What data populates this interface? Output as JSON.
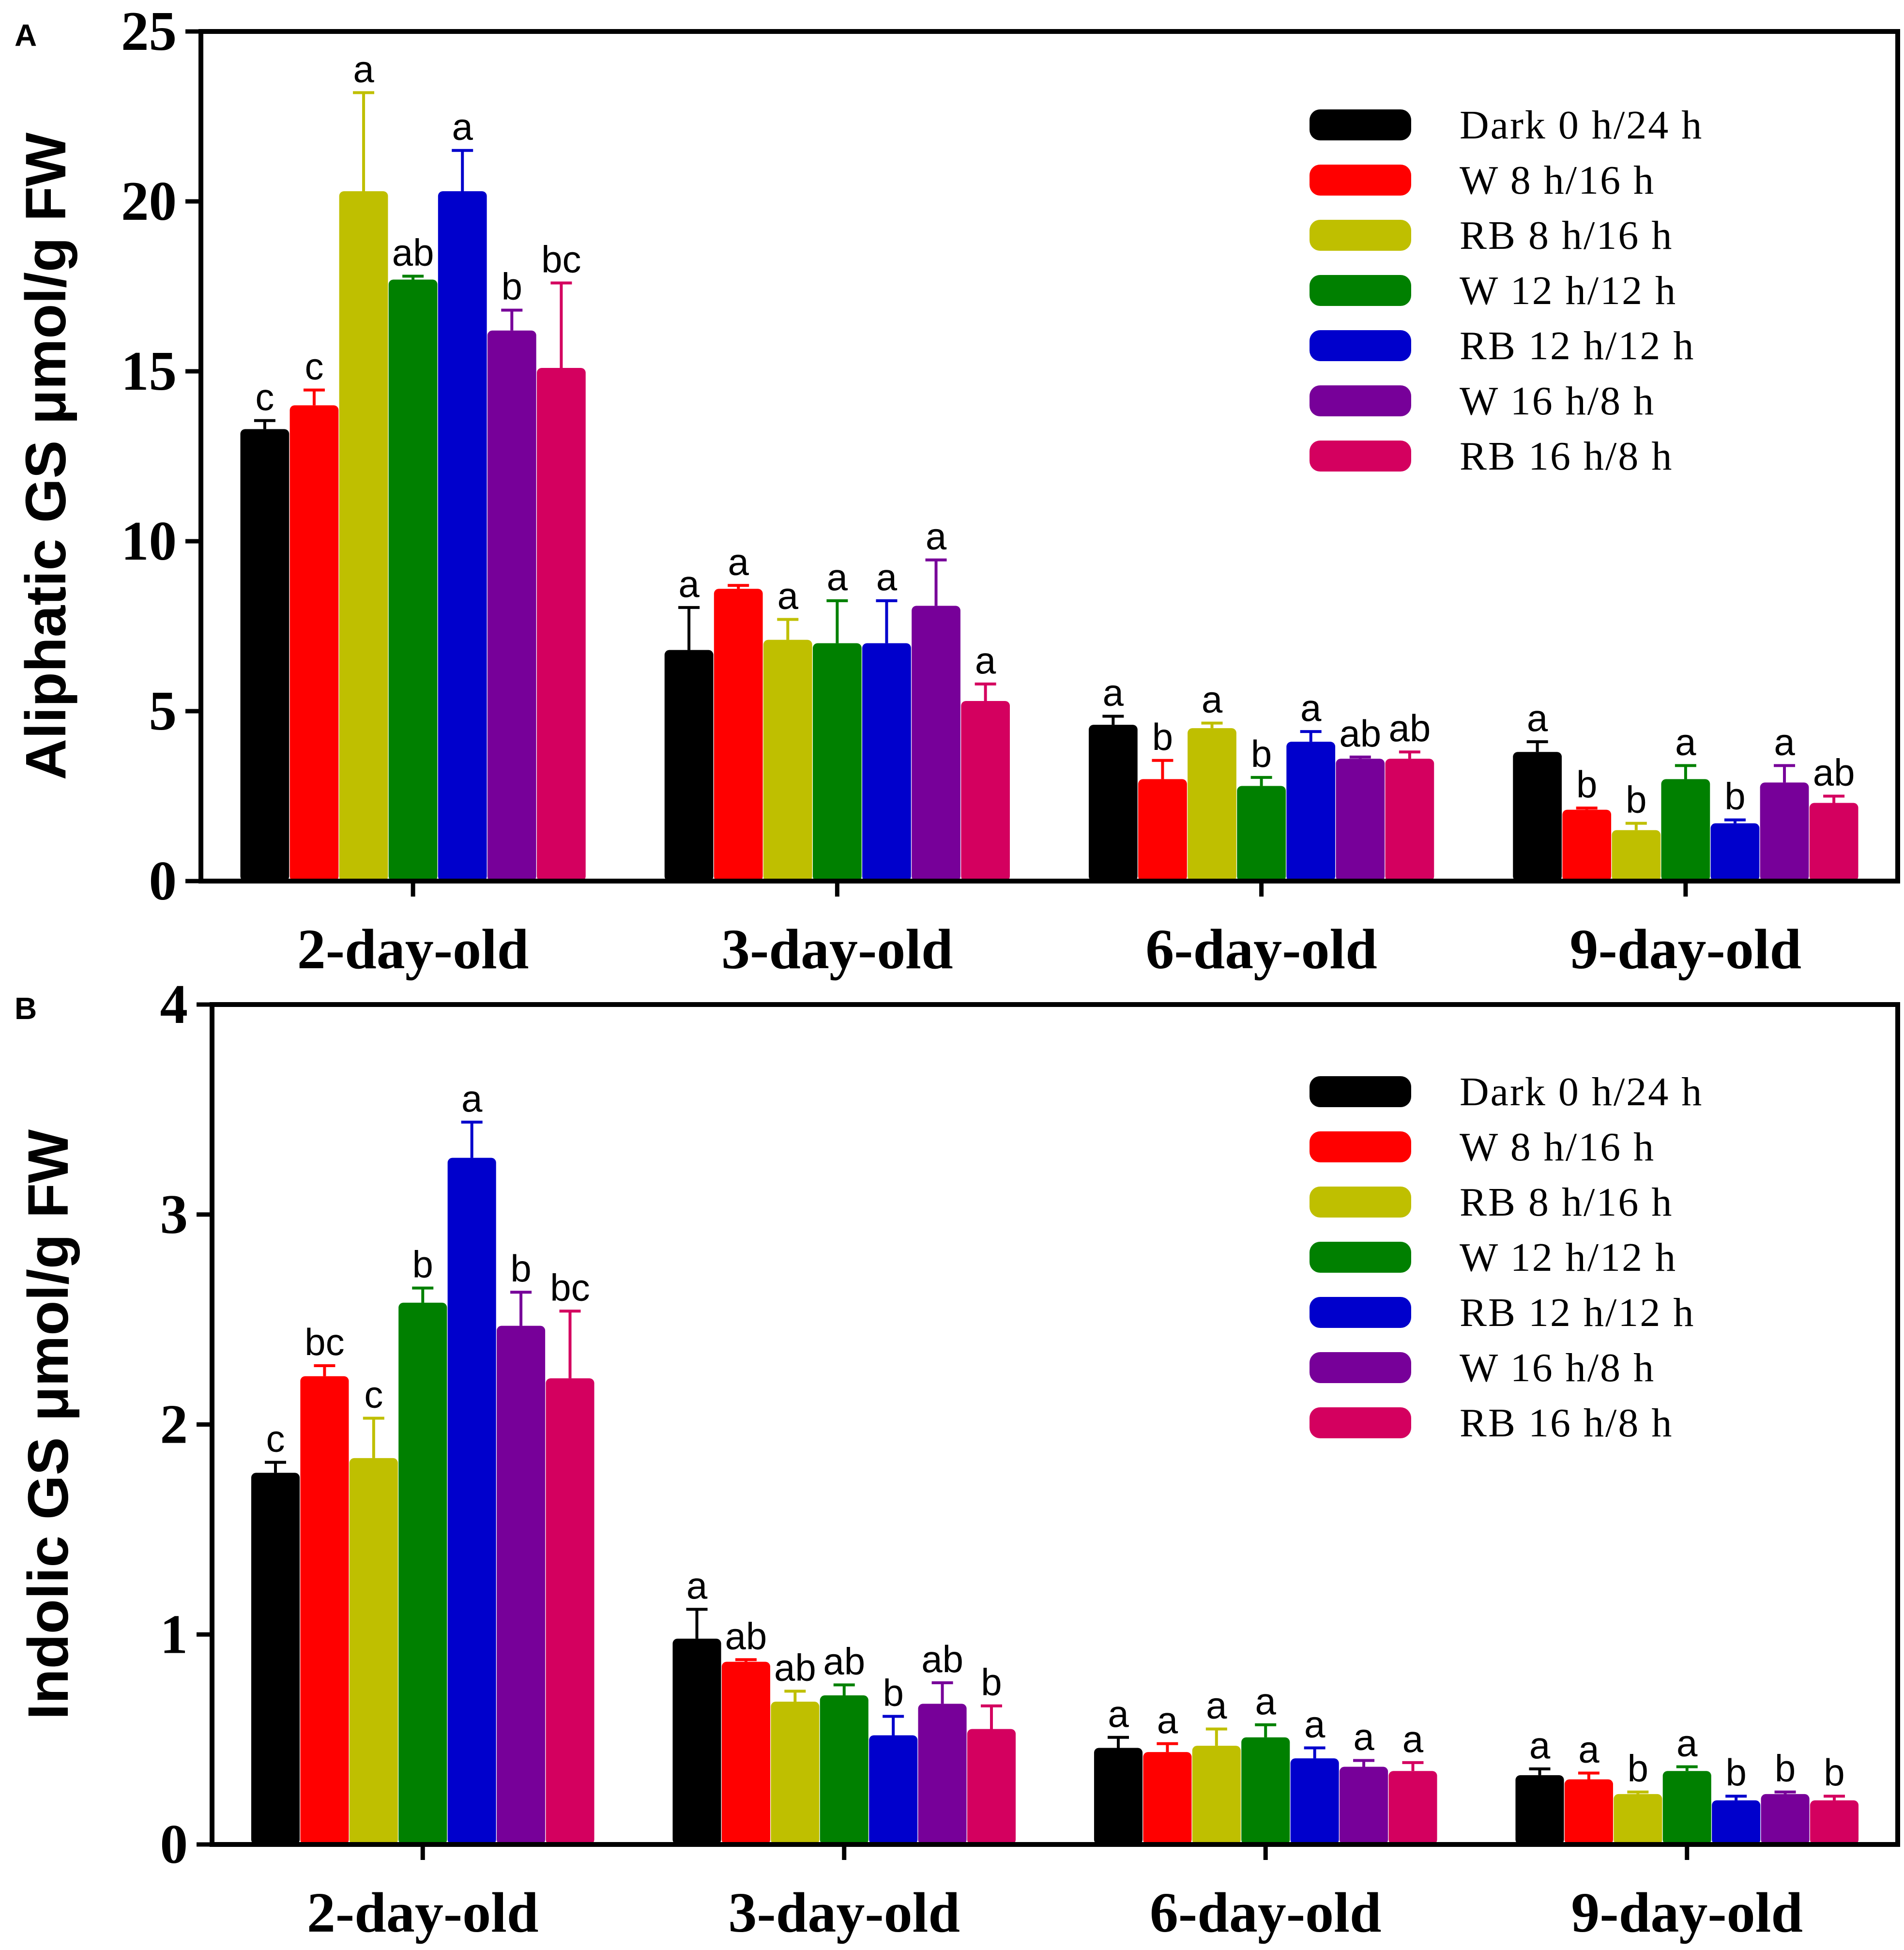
{
  "legend": [
    {
      "name": "Dark 0 h/24 h",
      "color": "#000000"
    },
    {
      "name": "W  8 h/16 h",
      "color": "#ff0000"
    },
    {
      "name": "RB 8 h/16 h",
      "color": "#bfbf00"
    },
    {
      "name": "W  12 h/12 h",
      "color": "#008000"
    },
    {
      "name": "RB 12 h/12 h",
      "color": "#0000cc"
    },
    {
      "name": "W  16 h/8 h",
      "color": "#770099"
    },
    {
      "name": "RB 16 h/8 h",
      "color": "#d4005f"
    }
  ],
  "chart_data": [
    {
      "panel": "A",
      "type": "bar",
      "ylabel": "Aliphatic GS μmol/g FW",
      "xlabel": "",
      "ylim": [
        0,
        25
      ],
      "yticks": [
        "0",
        "5",
        "10",
        "15",
        "20",
        "25"
      ],
      "categories": [
        "2-day-old",
        "3-day-old",
        "6-day-old",
        "9-day-old"
      ],
      "series": [
        {
          "name": "Dark 0 h/24 h",
          "values": [
            13.3,
            6.8,
            4.6,
            3.8
          ],
          "errors": [
            0.25,
            1.25,
            0.25,
            0.3
          ],
          "letters": [
            "c",
            "a",
            "a",
            "a"
          ]
        },
        {
          "name": "W 8 h/16 h",
          "values": [
            14.0,
            8.6,
            3.0,
            2.1
          ],
          "errors": [
            0.45,
            0.1,
            0.55,
            0.05
          ],
          "letters": [
            "c",
            "a",
            "b",
            "b"
          ]
        },
        {
          "name": "RB 8 h/16 h",
          "values": [
            20.3,
            7.1,
            4.5,
            1.5
          ],
          "errors": [
            2.9,
            0.6,
            0.15,
            0.2
          ],
          "letters": [
            "a",
            "a",
            "a",
            "b"
          ]
        },
        {
          "name": "W 12 h/12 h",
          "values": [
            17.7,
            7.0,
            2.8,
            3.0
          ],
          "errors": [
            0.1,
            1.25,
            0.25,
            0.4
          ],
          "letters": [
            "ab",
            "a",
            "b",
            "a"
          ]
        },
        {
          "name": "RB 12 h/12 h",
          "values": [
            20.3,
            7.0,
            4.1,
            1.7
          ],
          "errors": [
            1.2,
            1.25,
            0.3,
            0.1
          ],
          "letters": [
            "a",
            "a",
            "a",
            "b"
          ]
        },
        {
          "name": "W 16 h/8 h",
          "values": [
            16.2,
            8.1,
            3.6,
            2.9
          ],
          "errors": [
            0.6,
            1.35,
            0.05,
            0.5
          ],
          "letters": [
            "b",
            "a",
            "ab",
            "a"
          ]
        },
        {
          "name": "RB 16 h/8 h",
          "values": [
            15.1,
            5.3,
            3.6,
            2.3
          ],
          "errors": [
            2.5,
            0.5,
            0.2,
            0.2
          ],
          "letters": [
            "bc",
            "a",
            "ab",
            "ab"
          ]
        }
      ]
    },
    {
      "panel": "B",
      "type": "bar",
      "ylabel": "Indolic GS μmol/g FW",
      "xlabel": "",
      "ylim": [
        0,
        4
      ],
      "yticks": [
        "0",
        "1",
        "2",
        "3",
        "4"
      ],
      "categories": [
        "2-day-old",
        "3-day-old",
        "6-day-old",
        "9-day-old"
      ],
      "series": [
        {
          "name": "Dark 0 h/24 h",
          "values": [
            1.77,
            0.98,
            0.46,
            0.33
          ],
          "errors": [
            0.05,
            0.14,
            0.05,
            0.03
          ],
          "letters": [
            "c",
            "a",
            "a",
            "a"
          ]
        },
        {
          "name": "W 8 h/16 h",
          "values": [
            2.23,
            0.87,
            0.44,
            0.31
          ],
          "errors": [
            0.05,
            0.01,
            0.04,
            0.03
          ],
          "letters": [
            "bc",
            "ab",
            "a",
            "a"
          ]
        },
        {
          "name": "RB 8 h/16 h",
          "values": [
            1.84,
            0.68,
            0.47,
            0.24
          ],
          "errors": [
            0.19,
            0.05,
            0.08,
            0.01
          ],
          "letters": [
            "c",
            "ab",
            "a",
            "b"
          ]
        },
        {
          "name": "W 12 h/12 h",
          "values": [
            2.58,
            0.71,
            0.51,
            0.35
          ],
          "errors": [
            0.07,
            0.05,
            0.06,
            0.02
          ],
          "letters": [
            "b",
            "ab",
            "a",
            "a"
          ]
        },
        {
          "name": "RB 12 h/12 h",
          "values": [
            3.27,
            0.52,
            0.41,
            0.21
          ],
          "errors": [
            0.17,
            0.09,
            0.05,
            0.02
          ],
          "letters": [
            "a",
            "b",
            "a",
            "b"
          ]
        },
        {
          "name": "W 16 h/8 h",
          "values": [
            2.47,
            0.67,
            0.37,
            0.24
          ],
          "errors": [
            0.16,
            0.1,
            0.03,
            0.01
          ],
          "letters": [
            "b",
            "ab",
            "a",
            "b"
          ]
        },
        {
          "name": "RB 16 h/8 h",
          "values": [
            2.22,
            0.55,
            0.35,
            0.21
          ],
          "errors": [
            0.32,
            0.11,
            0.04,
            0.02
          ],
          "letters": [
            "bc",
            "b",
            "a",
            "b"
          ]
        }
      ]
    }
  ]
}
